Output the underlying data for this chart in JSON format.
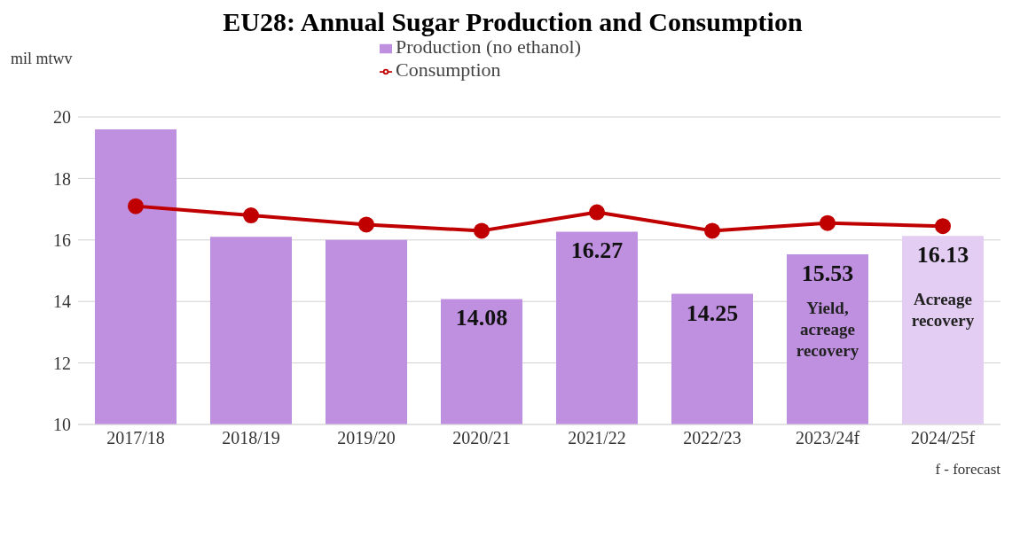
{
  "chart_data": {
    "type": "bar",
    "title": "EU28: Annual Sugar Production and Consumption",
    "ylabel": "mil mtwv",
    "categories": [
      "2017/18",
      "2018/19",
      "2019/20",
      "2020/21",
      "2021/22",
      "2022/23",
      "2023/24f",
      "2024/25f"
    ],
    "series": [
      {
        "name": "Production (no ethanol)",
        "color": "#bf8fe0",
        "colors": [
          "#bf8fe0",
          "#bf8fe0",
          "#bf8fe0",
          "#bf8fe0",
          "#bf8fe0",
          "#bf8fe0",
          "#bf8fe0",
          "#e3cdf2"
        ],
        "values": [
          19.6,
          16.1,
          16.0,
          14.08,
          16.27,
          14.25,
          15.53,
          16.13
        ],
        "value_labels": [
          null,
          null,
          null,
          "14.08",
          "16.27",
          "14.25",
          "15.53",
          "16.13"
        ]
      },
      {
        "name": "Consumption",
        "type": "line",
        "color": "#c00000",
        "values": [
          17.1,
          16.8,
          16.5,
          16.3,
          16.9,
          16.3,
          16.55,
          16.45
        ]
      }
    ],
    "ylim": [
      10,
      20
    ],
    "yticks": [
      10,
      12,
      14,
      16,
      18,
      20
    ],
    "grid": "y",
    "legend": "top",
    "marker": "circle",
    "line_style": "solid",
    "annotations": [
      "Yield, acreage recovery",
      "Acreage recovery",
      "f - forecast"
    ]
  }
}
